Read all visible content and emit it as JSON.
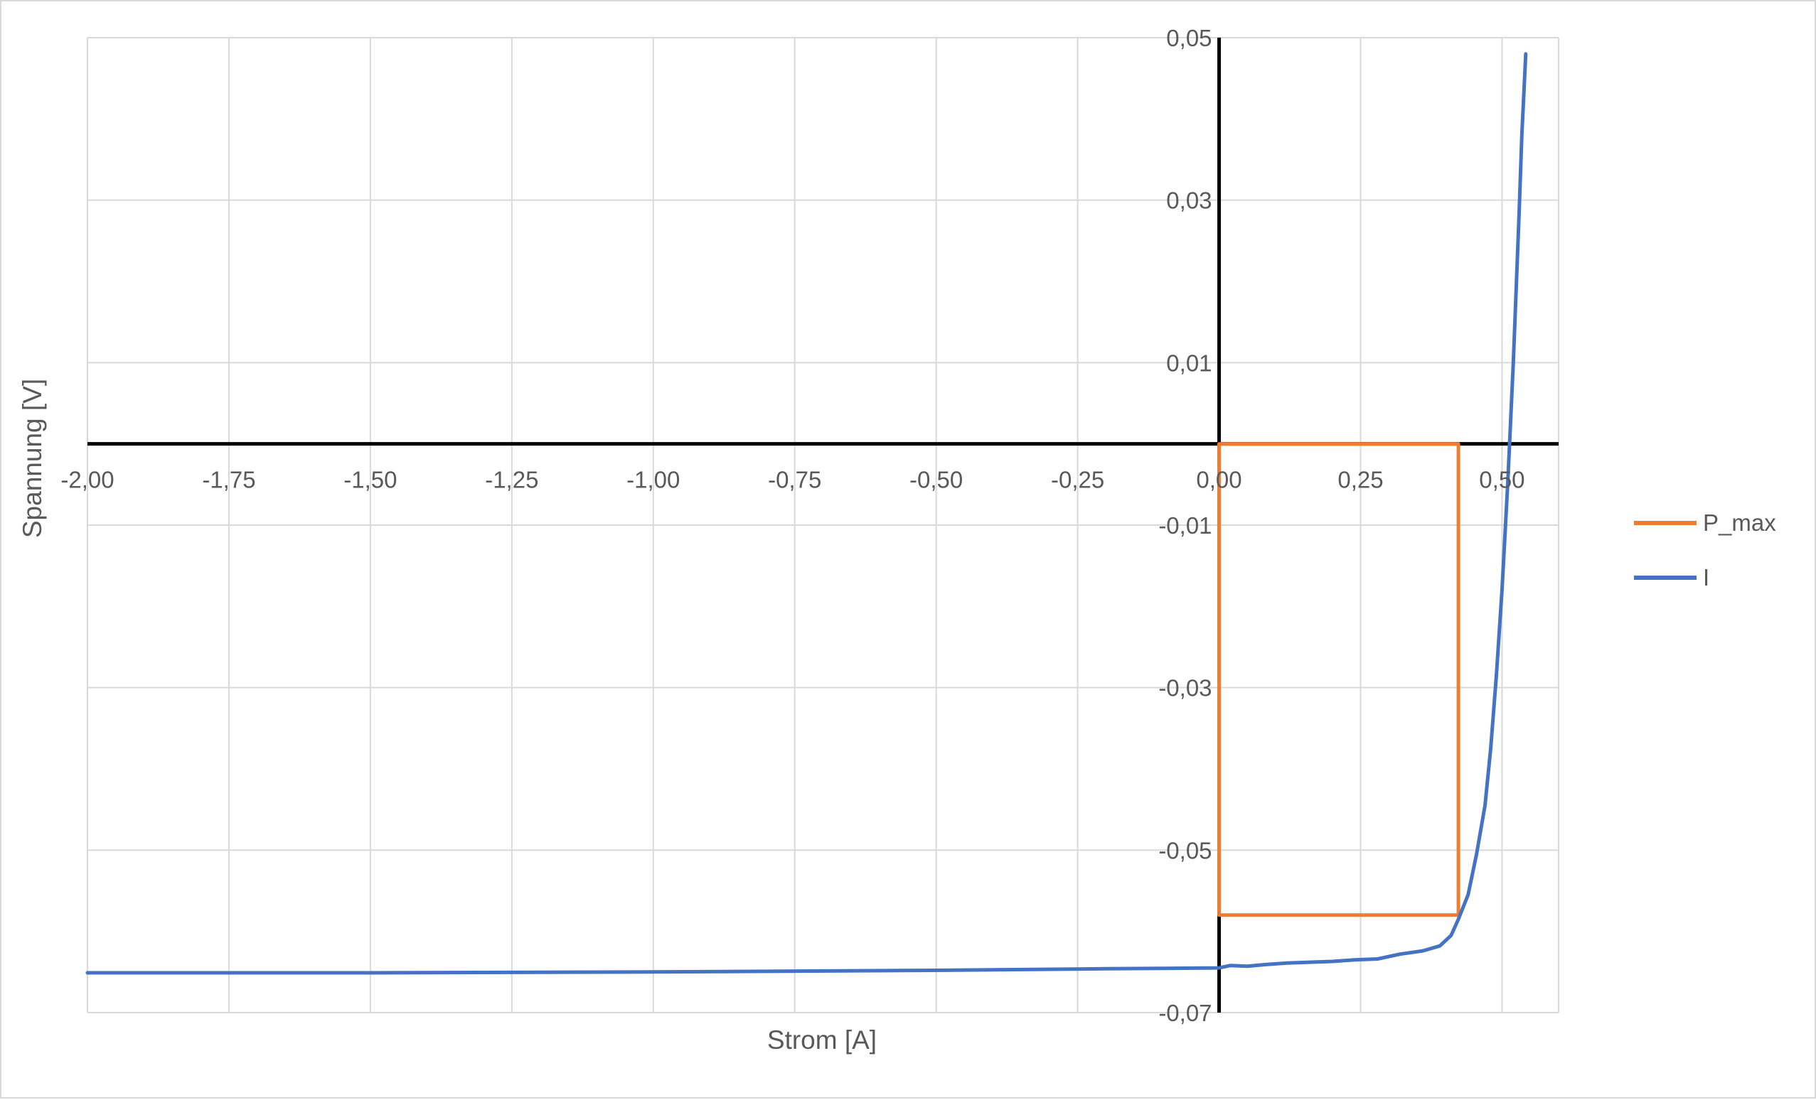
{
  "chart_data": {
    "type": "line",
    "xlabel": "Strom [A]",
    "ylabel": "Spannung [V]",
    "xlim": [
      -2.0,
      0.6
    ],
    "ylim": [
      -0.07,
      0.05
    ],
    "x_ticks": [
      -2.0,
      -1.75,
      -1.5,
      -1.25,
      -1.0,
      -0.75,
      -0.5,
      -0.25,
      0.0,
      0.25,
      0.5
    ],
    "x_tick_labels": [
      "-2,00",
      "-1,75",
      "-1,50",
      "-1,25",
      "-1,00",
      "-0,75",
      "-0,50",
      "-0,25",
      "0,00",
      "0,25",
      "0,50"
    ],
    "y_ticks": [
      0.05,
      0.03,
      0.01,
      -0.01,
      -0.03,
      -0.05,
      -0.07
    ],
    "y_tick_labels": [
      "0,05",
      "0,03",
      "0,01",
      "-0,01",
      "-0,03",
      "-0,05",
      "-0,07"
    ],
    "grid": true,
    "legend_position": "right",
    "series": [
      {
        "name": "P_max",
        "color": "#ED7D31",
        "x": [
          0.0,
          0.423,
          0.423,
          0.0,
          0.0
        ],
        "y": [
          0.0,
          0.0,
          -0.058,
          -0.058,
          0.0
        ]
      },
      {
        "name": "I",
        "color": "#4472C4",
        "x": [
          -2.0,
          -1.5,
          -1.0,
          -0.5,
          -0.2,
          0.0,
          0.02,
          0.05,
          0.08,
          0.12,
          0.16,
          0.2,
          0.24,
          0.28,
          0.32,
          0.36,
          0.39,
          0.41,
          0.423,
          0.44,
          0.455,
          0.47,
          0.48,
          0.49,
          0.5,
          0.51,
          0.52,
          0.53,
          0.535,
          0.542
        ],
        "y": [
          -0.0651,
          -0.0651,
          -0.065,
          -0.0648,
          -0.0646,
          -0.0645,
          -0.0642,
          -0.0643,
          -0.0641,
          -0.0639,
          -0.0638,
          -0.0637,
          -0.0635,
          -0.0634,
          -0.0628,
          -0.0624,
          -0.0618,
          -0.0605,
          -0.0585,
          -0.0555,
          -0.0505,
          -0.0445,
          -0.0375,
          -0.0285,
          -0.018,
          -0.005,
          0.01,
          0.028,
          0.038,
          0.048
        ]
      }
    ]
  }
}
